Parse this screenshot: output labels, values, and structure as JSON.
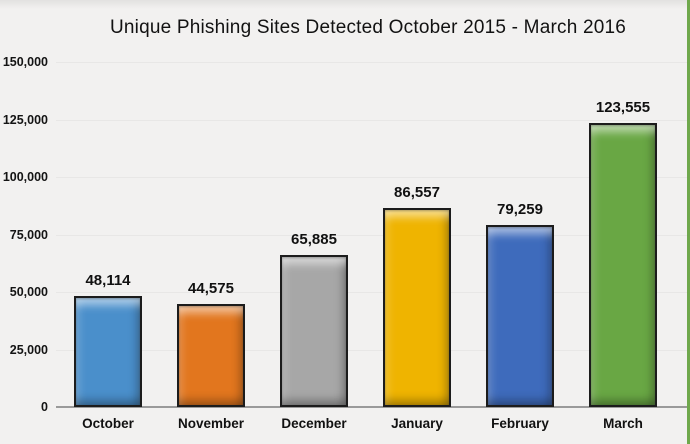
{
  "chart_data": {
    "type": "bar",
    "title": "Unique Phishing Sites Detected October 2015 - March 2016",
    "categories": [
      "October",
      "November",
      "December",
      "January",
      "February",
      "March"
    ],
    "values": [
      48114,
      44575,
      65885,
      86557,
      79259,
      123555
    ],
    "value_labels": [
      "48,114",
      "44,575",
      "65,885",
      "86,557",
      "79,259",
      "123,555"
    ],
    "bar_colors": [
      "#4A8FCB",
      "#E2761E",
      "#A7A7A7",
      "#EFB400",
      "#3E6BBC",
      "#69A744"
    ],
    "xlabel": "",
    "ylabel": "",
    "ylim": [
      0,
      150000
    ],
    "ytick_interval": 25000,
    "ytick_labels": [
      "0",
      "25,000",
      "50,000",
      "75,000",
      "100,000",
      "125,000",
      "150,000"
    ],
    "grid": false,
    "legend": "none"
  },
  "colors": {
    "background": "#F2F1F0",
    "axis_line": "#9A9A9A",
    "text": "#111111",
    "bar_border": "#1C1C1C",
    "right_edge_accent": "#6FA84C"
  }
}
